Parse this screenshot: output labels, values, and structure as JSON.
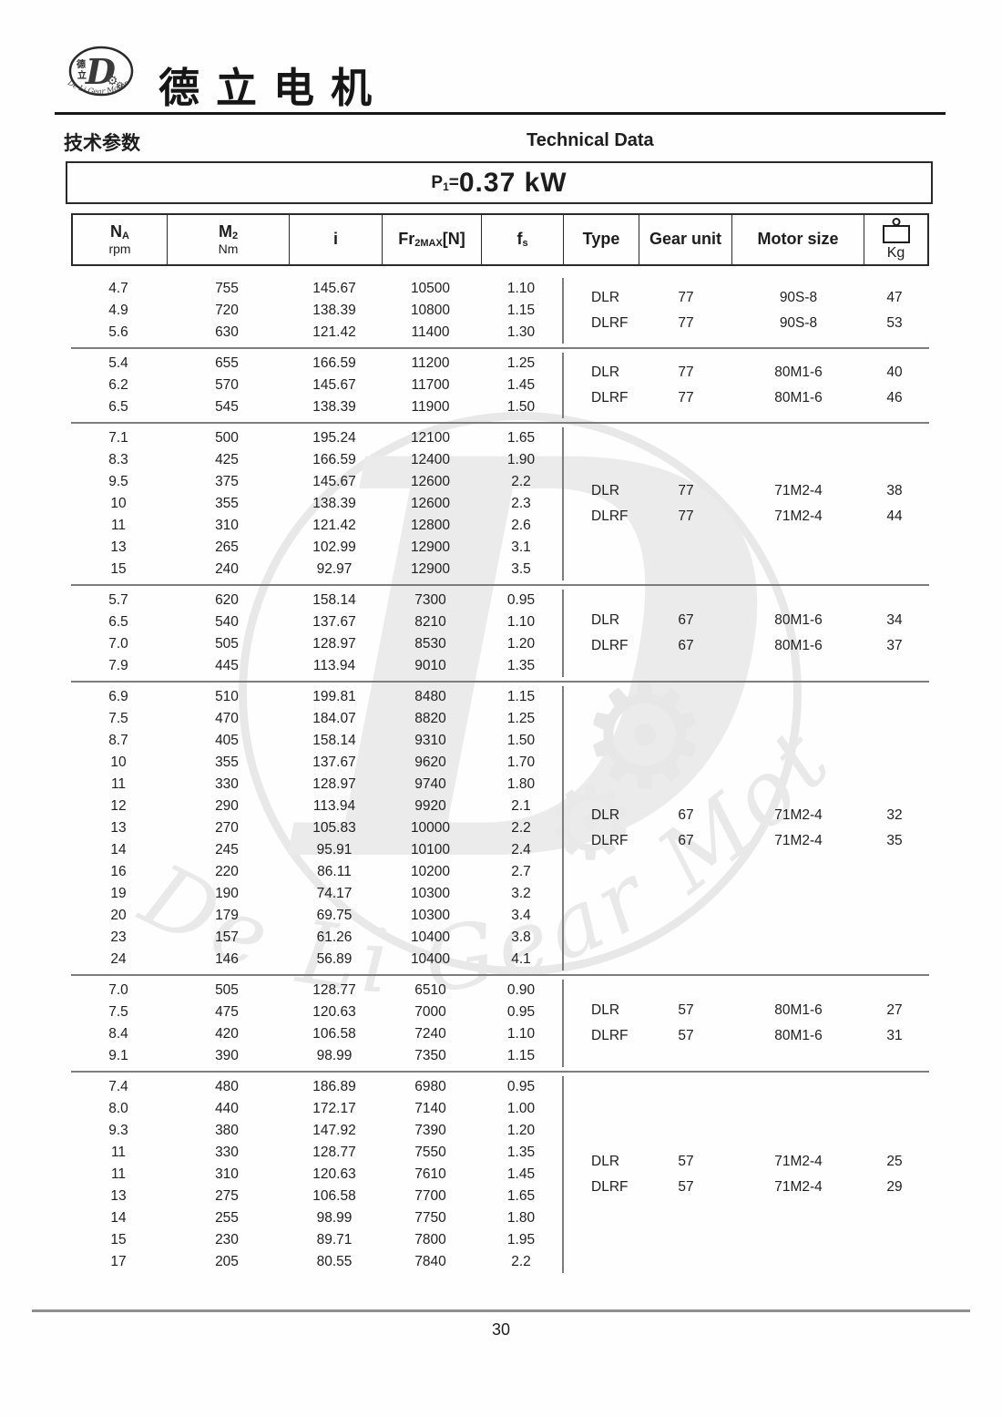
{
  "brand": {
    "name_cn": "德立电机",
    "logo_cn_top": "德",
    "logo_cn_bottom": "立",
    "logo_letter": "D",
    "logo_arc_text": "De Li Gear Motor"
  },
  "section": {
    "title_cn": "技术参数",
    "title_en": "Technical Data"
  },
  "power": {
    "p": "P",
    "sub": "1",
    "eq": "=",
    "value": "0.37 kW"
  },
  "table": {
    "headers": [
      {
        "main": "N",
        "sub": "A",
        "unit": "rpm"
      },
      {
        "main": "M",
        "sub": "2",
        "unit": "Nm"
      },
      {
        "main": "i"
      },
      {
        "main": "Fr",
        "sub": "2MAX",
        "tail": "[N]"
      },
      {
        "main": "f",
        "sub": "s"
      },
      {
        "main": "Type"
      },
      {
        "main": "Gear unit"
      },
      {
        "main": "Motor size"
      },
      {
        "label": "Kg",
        "icon": "weight-icon"
      }
    ]
  },
  "blocks": [
    {
      "rows": [
        [
          "4.7",
          "755",
          "145.67",
          "10500",
          "1.10"
        ],
        [
          "4.9",
          "720",
          "138.39",
          "10800",
          "1.15"
        ],
        [
          "5.6",
          "630",
          "121.42",
          "11400",
          "1.30"
        ]
      ],
      "variants": [
        {
          "type": "DLR",
          "gear": "77",
          "motor": "90S-8",
          "kg": "47"
        },
        {
          "type": "DLRF",
          "gear": "77",
          "motor": "90S-8",
          "kg": "53"
        }
      ]
    },
    {
      "rows": [
        [
          "5.4",
          "655",
          "166.59",
          "11200",
          "1.25"
        ],
        [
          "6.2",
          "570",
          "145.67",
          "11700",
          "1.45"
        ],
        [
          "6.5",
          "545",
          "138.39",
          "11900",
          "1.50"
        ]
      ],
      "variants": [
        {
          "type": "DLR",
          "gear": "77",
          "motor": "80M1-6",
          "kg": "40"
        },
        {
          "type": "DLRF",
          "gear": "77",
          "motor": "80M1-6",
          "kg": "46"
        }
      ]
    },
    {
      "rows": [
        [
          "7.1",
          "500",
          "195.24",
          "12100",
          "1.65"
        ],
        [
          "8.3",
          "425",
          "166.59",
          "12400",
          "1.90"
        ],
        [
          "9.5",
          "375",
          "145.67",
          "12600",
          "2.2"
        ],
        [
          "10",
          "355",
          "138.39",
          "12600",
          "2.3"
        ],
        [
          "11",
          "310",
          "121.42",
          "12800",
          "2.6"
        ],
        [
          "13",
          "265",
          "102.99",
          "12900",
          "3.1"
        ],
        [
          "15",
          "240",
          "92.97",
          "12900",
          "3.5"
        ]
      ],
      "variants": [
        {
          "type": "DLR",
          "gear": "77",
          "motor": "71M2-4",
          "kg": "38"
        },
        {
          "type": "DLRF",
          "gear": "77",
          "motor": "71M2-4",
          "kg": "44"
        }
      ]
    },
    {
      "rows": [
        [
          "5.7",
          "620",
          "158.14",
          "7300",
          "0.95"
        ],
        [
          "6.5",
          "540",
          "137.67",
          "8210",
          "1.10"
        ],
        [
          "7.0",
          "505",
          "128.97",
          "8530",
          "1.20"
        ],
        [
          "7.9",
          "445",
          "113.94",
          "9010",
          "1.35"
        ]
      ],
      "variants": [
        {
          "type": "DLR",
          "gear": "67",
          "motor": "80M1-6",
          "kg": "34"
        },
        {
          "type": "DLRF",
          "gear": "67",
          "motor": "80M1-6",
          "kg": "37"
        }
      ]
    },
    {
      "rows": [
        [
          "6.9",
          "510",
          "199.81",
          "8480",
          "1.15"
        ],
        [
          "7.5",
          "470",
          "184.07",
          "8820",
          "1.25"
        ],
        [
          "8.7",
          "405",
          "158.14",
          "9310",
          "1.50"
        ],
        [
          "10",
          "355",
          "137.67",
          "9620",
          "1.70"
        ],
        [
          "11",
          "330",
          "128.97",
          "9740",
          "1.80"
        ],
        [
          "12",
          "290",
          "113.94",
          "9920",
          "2.1"
        ],
        [
          "13",
          "270",
          "105.83",
          "10000",
          "2.2"
        ],
        [
          "14",
          "245",
          "95.91",
          "10100",
          "2.4"
        ],
        [
          "16",
          "220",
          "86.11",
          "10200",
          "2.7"
        ],
        [
          "19",
          "190",
          "74.17",
          "10300",
          "3.2"
        ],
        [
          "20",
          "179",
          "69.75",
          "10300",
          "3.4"
        ],
        [
          "23",
          "157",
          "61.26",
          "10400",
          "3.8"
        ],
        [
          "24",
          "146",
          "56.89",
          "10400",
          "4.1"
        ]
      ],
      "variants": [
        {
          "type": "DLR",
          "gear": "67",
          "motor": "71M2-4",
          "kg": "32"
        },
        {
          "type": "DLRF",
          "gear": "67",
          "motor": "71M2-4",
          "kg": "35"
        }
      ]
    },
    {
      "rows": [
        [
          "7.0",
          "505",
          "128.77",
          "6510",
          "0.90"
        ],
        [
          "7.5",
          "475",
          "120.63",
          "7000",
          "0.95"
        ],
        [
          "8.4",
          "420",
          "106.58",
          "7240",
          "1.10"
        ],
        [
          "9.1",
          "390",
          "98.99",
          "7350",
          "1.15"
        ]
      ],
      "variants": [
        {
          "type": "DLR",
          "gear": "57",
          "motor": "80M1-6",
          "kg": "27"
        },
        {
          "type": "DLRF",
          "gear": "57",
          "motor": "80M1-6",
          "kg": "31"
        }
      ]
    },
    {
      "rows": [
        [
          "7.4",
          "480",
          "186.89",
          "6980",
          "0.95"
        ],
        [
          "8.0",
          "440",
          "172.17",
          "7140",
          "1.00"
        ],
        [
          "9.3",
          "380",
          "147.92",
          "7390",
          "1.20"
        ],
        [
          "11",
          "330",
          "128.77",
          "7550",
          "1.35"
        ],
        [
          "11",
          "310",
          "120.63",
          "7610",
          "1.45"
        ],
        [
          "13",
          "275",
          "106.58",
          "7700",
          "1.65"
        ],
        [
          "14",
          "255",
          "98.99",
          "7750",
          "1.80"
        ],
        [
          "15",
          "230",
          "89.71",
          "7800",
          "1.95"
        ],
        [
          "17",
          "205",
          "80.55",
          "7840",
          "2.2"
        ]
      ],
      "variants": [
        {
          "type": "DLR",
          "gear": "57",
          "motor": "71M2-4",
          "kg": "25"
        },
        {
          "type": "DLRF",
          "gear": "57",
          "motor": "71M2-4",
          "kg": "29"
        }
      ]
    }
  ],
  "watermark": {
    "letter": "D",
    "gear_glyph": "⚙",
    "arc_text": "De Li Gear Motor",
    "color": "#e9e9e9"
  },
  "footer": {
    "page": "30"
  }
}
